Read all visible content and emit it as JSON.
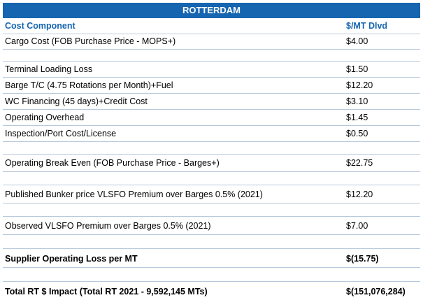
{
  "title": "ROTTERDAM",
  "headers": {
    "component": "Cost Component",
    "value": "$/MT Dlvd"
  },
  "rows": [
    {
      "label": "Cargo Cost (FOB Purchase Price - MOPS+)",
      "value": "$4.00"
    },
    {
      "label": "Terminal Loading Loss",
      "value": "$1.50"
    },
    {
      "label": "Barge T/C (4.75 Rotations per Month)+Fuel",
      "value": "$12.20"
    },
    {
      "label": "WC Financing (45 days)+Credit Cost",
      "value": "$3.10"
    },
    {
      "label": "Operating Overhead",
      "value": "$1.45"
    },
    {
      "label": "Inspection/Port Cost/License",
      "value": "$0.50"
    },
    {
      "label": "Operating Break Even (FOB Purchase Price - Barges+)",
      "value": "$22.75"
    },
    {
      "label": "Published Bunker price VLSFO Premium over Barges 0.5% (2021)",
      "value": "$12.20"
    },
    {
      "label": "Observed VLSFO Premium over Barges 0.5% (2021)",
      "value": "$7.00"
    },
    {
      "label": "Supplier Operating Loss per MT",
      "value": "$(15.75)"
    },
    {
      "label": "Total RT $ Impact (Total RT 2021 - 9,592,145 MTs)",
      "value": "$(151,076,284)"
    }
  ]
}
